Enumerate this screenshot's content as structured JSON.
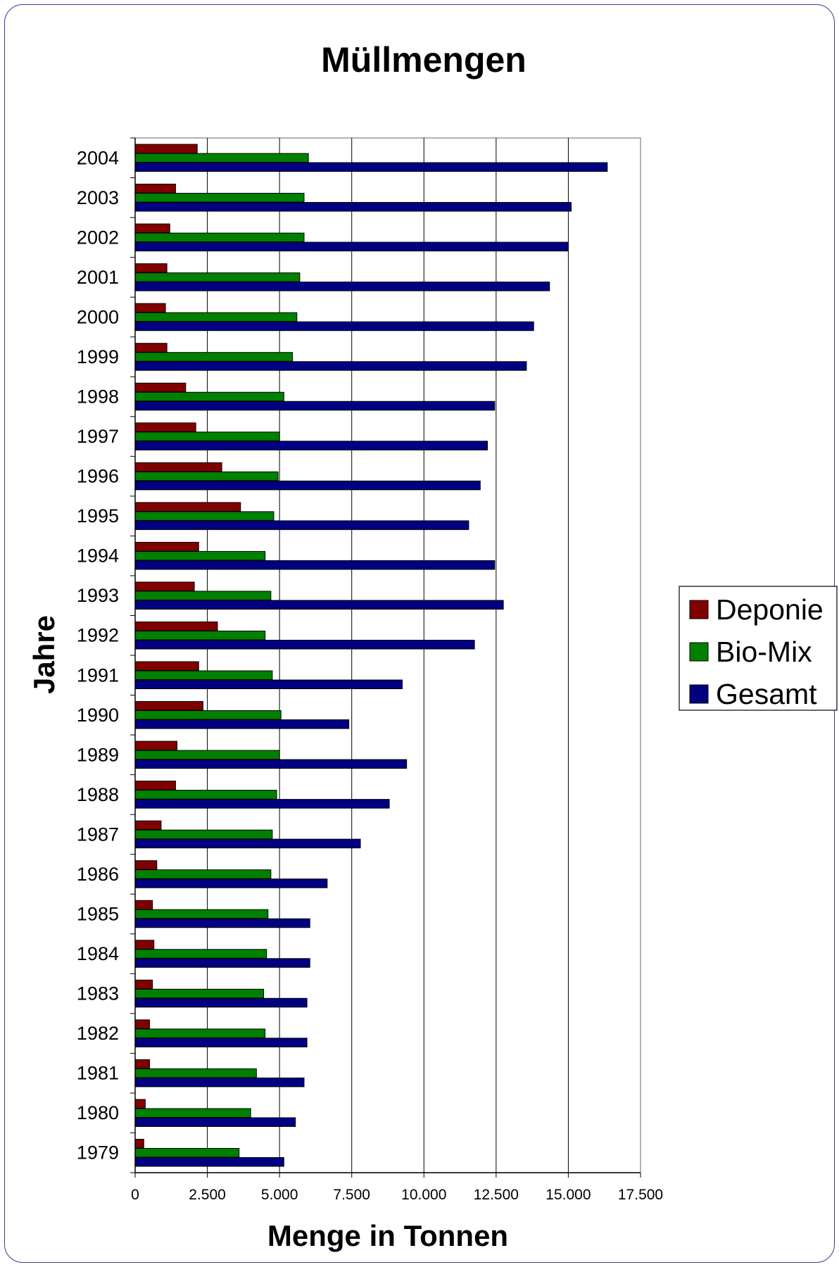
{
  "chart_data": {
    "type": "bar",
    "orientation": "horizontal",
    "title": "Müllmengen",
    "xlabel": "Menge in Tonnen",
    "ylabel": "Jahre",
    "xlim": [
      0,
      17500
    ],
    "xticks": [
      0,
      2500,
      5000,
      7500,
      10000,
      12500,
      15000,
      17500
    ],
    "xtick_labels": [
      "0",
      "2.500",
      "5.000",
      "7.500",
      "10.000",
      "12.500",
      "15.000",
      "17.500"
    ],
    "grid": "vertical",
    "legend_position": "right",
    "categories": [
      "2004",
      "2003",
      "2002",
      "2001",
      "2000",
      "1999",
      "1998",
      "1997",
      "1996",
      "1995",
      "1994",
      "1993",
      "1992",
      "1991",
      "1990",
      "1989",
      "1988",
      "1987",
      "1986",
      "1985",
      "1984",
      "1983",
      "1982",
      "1981",
      "1980",
      "1979"
    ],
    "series": [
      {
        "name": "Deponie",
        "color": "#800000",
        "values": [
          2150,
          1400,
          1200,
          1100,
          1050,
          1100,
          1750,
          2100,
          3000,
          3650,
          2200,
          2050,
          2850,
          2200,
          2350,
          1450,
          1400,
          900,
          750,
          600,
          650,
          600,
          500,
          500,
          350,
          300
        ]
      },
      {
        "name": "Bio-Mix",
        "color": "#008000",
        "values": [
          6000,
          5850,
          5850,
          5700,
          5600,
          5450,
          5150,
          5000,
          4950,
          4800,
          4500,
          4700,
          4500,
          4750,
          5050,
          5000,
          4900,
          4750,
          4700,
          4600,
          4550,
          4450,
          4500,
          4200,
          4000,
          3600
        ]
      },
      {
        "name": "Gesamt",
        "color": "#000080",
        "values": [
          16350,
          15100,
          15000,
          14350,
          13800,
          13550,
          12450,
          12200,
          11950,
          11550,
          12450,
          12750,
          11750,
          9250,
          7400,
          9400,
          8800,
          7800,
          6650,
          6050,
          6050,
          5950,
          5950,
          5850,
          5550,
          5150
        ]
      }
    ]
  }
}
